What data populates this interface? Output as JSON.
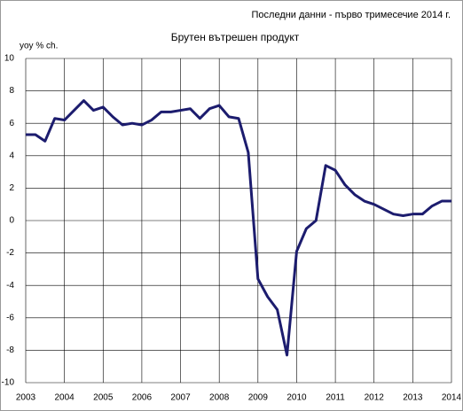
{
  "chart_data": {
    "type": "line",
    "title": "Брутен вътрешен продукт",
    "subtitle": "Последни данни - първо тримесечие 2014 г.",
    "y_label": "yoy % ch.",
    "categories": [
      "2003",
      null,
      null,
      null,
      "2004",
      null,
      null,
      null,
      "2005",
      null,
      null,
      null,
      "2006",
      null,
      null,
      null,
      "2007",
      null,
      null,
      null,
      "2008",
      null,
      null,
      null,
      "2009",
      null,
      null,
      null,
      "2010",
      null,
      null,
      null,
      "2011",
      null,
      null,
      null,
      "2012",
      null,
      null,
      null,
      "2013",
      null,
      null,
      null,
      "2014"
    ],
    "values": [
      5.3,
      5.3,
      4.9,
      6.3,
      6.2,
      6.8,
      7.4,
      6.8,
      7.0,
      6.4,
      5.9,
      6.0,
      5.9,
      6.2,
      6.7,
      6.7,
      6.8,
      6.9,
      6.3,
      6.9,
      7.1,
      6.4,
      6.3,
      4.2,
      -3.6,
      -4.7,
      -5.5,
      -8.3,
      -1.9,
      -0.5,
      0.0,
      3.4,
      3.1,
      2.2,
      1.6,
      1.2,
      1.0,
      0.7,
      0.4,
      0.3,
      0.4,
      0.4,
      0.9,
      1.2,
      1.2
    ],
    "color": "#1c1c6e",
    "ylim": [
      -10,
      10
    ],
    "yticks": [
      -10,
      -8,
      -6,
      -4,
      -2,
      0,
      2,
      4,
      6,
      8,
      10
    ],
    "grid": true
  }
}
